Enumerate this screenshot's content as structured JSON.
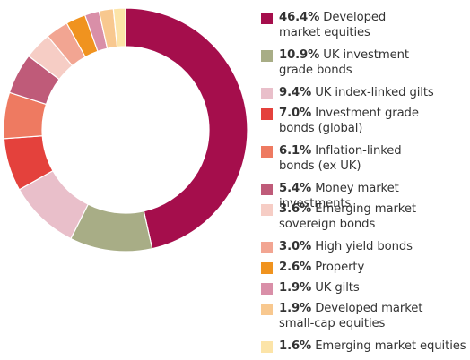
{
  "chart_data": {
    "type": "pie",
    "title": "",
    "series": [
      {
        "label": "Developed market equities",
        "percent_label": "46.4%",
        "value": 46.4,
        "color": "#A50E4C"
      },
      {
        "label": "UK investment grade bonds",
        "percent_label": "10.9%",
        "value": 10.9,
        "color": "#A8AD86"
      },
      {
        "label": "UK index-linked gilts",
        "percent_label": "9.4%",
        "value": 9.4,
        "color": "#E9BFCA"
      },
      {
        "label": "Investment grade bonds (global)",
        "percent_label": "7.0%",
        "value": 7.0,
        "color": "#E4413C"
      },
      {
        "label": "Inflation-linked bonds (ex UK)",
        "percent_label": "6.1%",
        "value": 6.1,
        "color": "#EE7A61"
      },
      {
        "label": "Money market investments",
        "percent_label": "5.4%",
        "value": 5.4,
        "color": "#BF5B79"
      },
      {
        "label": "Emerging market sovereign bonds",
        "percent_label": "3.6%",
        "value": 3.6,
        "color": "#F6CDC5"
      },
      {
        "label": "High yield bonds",
        "percent_label": "3.0%",
        "value": 3.0,
        "color": "#F2A592"
      },
      {
        "label": "Property",
        "percent_label": "2.6%",
        "value": 2.6,
        "color": "#F0931F"
      },
      {
        "label": "UK gilts",
        "percent_label": "1.9%",
        "value": 1.9,
        "color": "#D98FA8"
      },
      {
        "label": "Developed market small-cap equities",
        "percent_label": "1.9%",
        "value": 1.9,
        "color": "#F8C88F"
      },
      {
        "label": "Emerging market equities",
        "percent_label": "1.6%",
        "value": 1.6,
        "color": "#FCE4A8"
      }
    ],
    "legend_position": "right",
    "start_angle": "top (12 o'clock), clockwise"
  },
  "legend": {
    "items": [
      {
        "pct": "46.4%",
        "text": "Developed",
        "text2": "market equities"
      },
      {
        "pct": "10.9%",
        "text": "UK investment",
        "text2": "grade bonds"
      },
      {
        "pct": "9.4%",
        "text": "UK index-linked gilts",
        "text2": ""
      },
      {
        "pct": "7.0%",
        "text": "Investment grade",
        "text2": "bonds (global)"
      },
      {
        "pct": "6.1%",
        "text": "Inflation-linked",
        "text2": "bonds (ex UK)"
      },
      {
        "pct": "5.4%",
        "text": "Money market investments",
        "text2": ""
      },
      {
        "pct": "3.6%",
        "text": "Emerging market",
        "text2": "sovereign bonds"
      },
      {
        "pct": "3.0%",
        "text": "High yield bonds",
        "text2": ""
      },
      {
        "pct": "2.6%",
        "text": "Property",
        "text2": ""
      },
      {
        "pct": "1.9%",
        "text": "UK gilts",
        "text2": ""
      },
      {
        "pct": "1.9%",
        "text": "Developed market",
        "text2": "small-cap equities"
      },
      {
        "pct": "1.6%",
        "text": "Emerging market equities",
        "text2": ""
      }
    ]
  }
}
